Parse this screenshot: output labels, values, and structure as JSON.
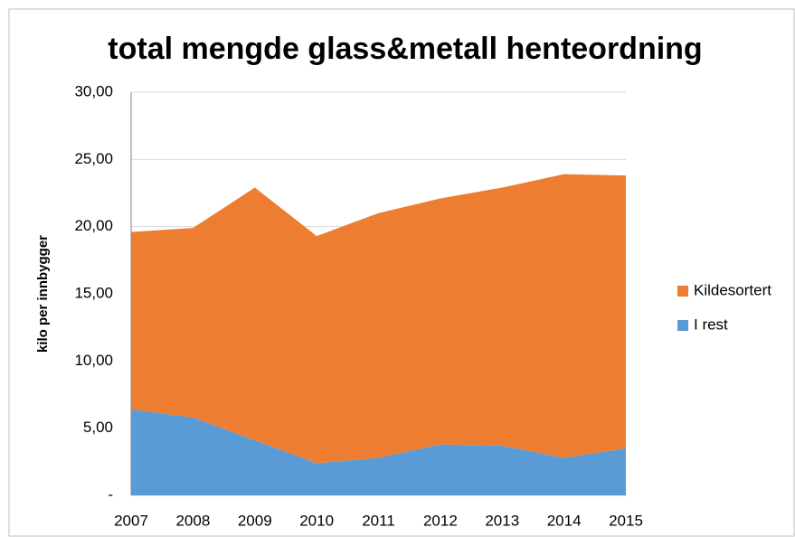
{
  "chart_data": {
    "type": "stacked-area",
    "title": "total mengde glass&metall henteordning",
    "y_label": "kilo per innbygger",
    "categories": [
      "2007",
      "2008",
      "2009",
      "2010",
      "2011",
      "2012",
      "2013",
      "2014",
      "2015"
    ],
    "series": [
      {
        "name": "I rest",
        "color": "#5b9bd5",
        "values": [
          6.4,
          5.8,
          4.1,
          2.4,
          2.8,
          3.8,
          3.7,
          2.8,
          3.5
        ]
      },
      {
        "name": "Kildesortert",
        "color": "#ed7d31",
        "values": [
          13.2,
          14.1,
          18.8,
          16.9,
          18.2,
          18.3,
          19.2,
          21.1,
          20.3
        ]
      }
    ],
    "ylim": [
      0,
      30
    ],
    "yticks": [
      {
        "value": 0,
        "label": "-"
      },
      {
        "value": 5,
        "label": "5,00"
      },
      {
        "value": 10,
        "label": "10,00"
      },
      {
        "value": 15,
        "label": "15,00"
      },
      {
        "value": 20,
        "label": "20,00"
      },
      {
        "value": 25,
        "label": "25,00"
      },
      {
        "value": 30,
        "label": "30,00"
      }
    ],
    "grid": true,
    "legend": "right"
  }
}
